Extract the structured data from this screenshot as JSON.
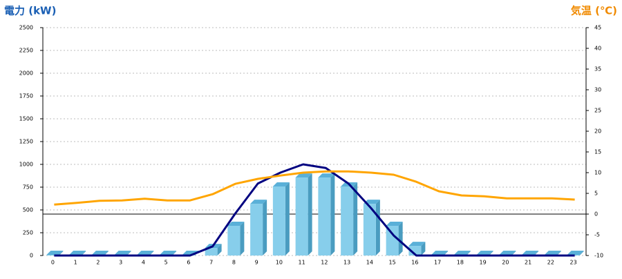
{
  "chart_data": {
    "type": "bar-line",
    "y_label": "電力 (kW)",
    "y2_label": "気温 (℃)",
    "categories": [
      "0",
      "1",
      "2",
      "3",
      "4",
      "5",
      "6",
      "7",
      "8",
      "9",
      "10",
      "11",
      "12",
      "13",
      "14",
      "15",
      "16",
      "17",
      "18",
      "19",
      "20",
      "21",
      "22",
      "23"
    ],
    "series": [
      {
        "type": "bar",
        "color": "#87ceeb",
        "values": [
          0,
          0,
          0,
          0,
          0,
          0,
          0,
          75,
          318,
          560,
          750,
          848,
          848,
          750,
          560,
          318,
          98,
          0,
          0,
          0,
          0,
          0,
          0,
          0
        ]
      },
      {
        "type": "line",
        "color": "#000080",
        "values": [
          0,
          0,
          0,
          0,
          0,
          0,
          0,
          100,
          460,
          790,
          910,
          1000,
          960,
          790,
          520,
          220,
          0,
          0,
          0,
          0,
          0,
          0,
          0,
          0
        ]
      },
      {
        "type": "line",
        "color": "#ffa500",
        "axis": "y2",
        "values": [
          2.3,
          2.7,
          3.2,
          3.3,
          3.7,
          3.3,
          3.3,
          4.8,
          7.3,
          8.5,
          9.3,
          10,
          10.3,
          10.3,
          10,
          9.5,
          7.8,
          5.5,
          4.5,
          4.3,
          3.8,
          3.8,
          3.8,
          3.5
        ]
      }
    ],
    "ylim": [
      0,
      2500
    ],
    "yticks": [
      0,
      250,
      500,
      750,
      1000,
      1250,
      1500,
      1750,
      2000,
      2250,
      2500
    ],
    "y2lim": [
      -10,
      45
    ],
    "y2ticks": [
      -10,
      -5,
      0,
      5,
      10,
      15,
      20,
      25,
      30,
      35,
      40,
      45
    ],
    "grid": true
  }
}
